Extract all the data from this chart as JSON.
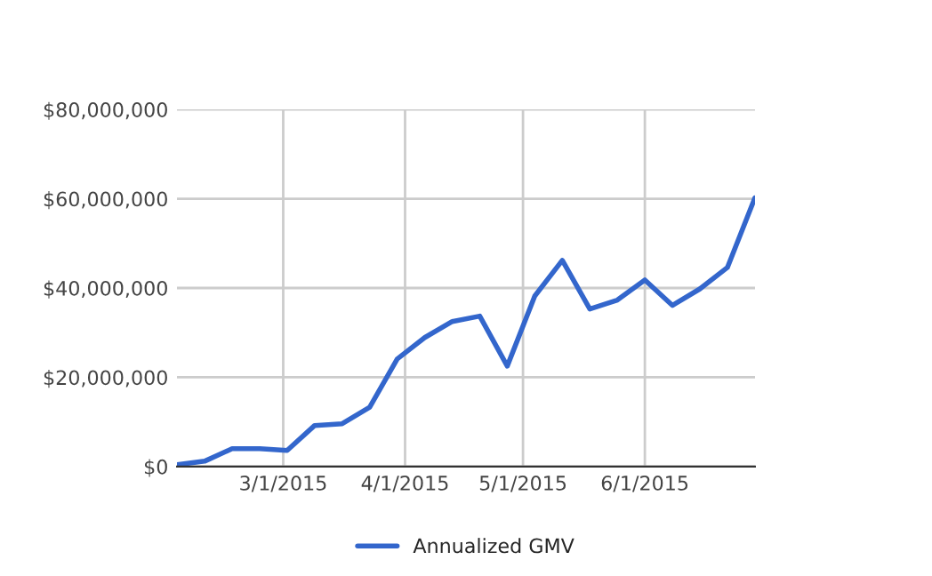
{
  "chart_data": {
    "type": "line",
    "x": [
      "2015-02-02",
      "2015-02-09",
      "2015-02-16",
      "2015-02-23",
      "2015-03-02",
      "2015-03-09",
      "2015-03-16",
      "2015-03-23",
      "2015-03-30",
      "2015-04-06",
      "2015-04-13",
      "2015-04-20",
      "2015-04-27",
      "2015-05-04",
      "2015-05-11",
      "2015-05-18",
      "2015-05-25",
      "2015-06-01",
      "2015-06-08",
      "2015-06-15",
      "2015-06-22",
      "2015-06-29"
    ],
    "series": [
      {
        "name": "Annualized GMV",
        "color": "#3366cc",
        "values": [
          400000,
          1200000,
          4000000,
          4000000,
          3600000,
          9200000,
          9600000,
          13300000,
          24100000,
          28900000,
          32500000,
          33700000,
          22500000,
          38200000,
          46200000,
          35300000,
          37300000,
          41800000,
          36100000,
          39800000,
          44600000,
          60200000
        ]
      }
    ],
    "xlim": [
      "2015-02-02",
      "2015-06-29"
    ],
    "xticks": [
      {
        "value": "2015-03-01",
        "label": "3/1/2015"
      },
      {
        "value": "2015-04-01",
        "label": "4/1/2015"
      },
      {
        "value": "2015-05-01",
        "label": "5/1/2015"
      },
      {
        "value": "2015-06-01",
        "label": "6/1/2015"
      }
    ],
    "ylim": [
      0,
      80000000
    ],
    "yticks": [
      {
        "value": 0,
        "label": "$0"
      },
      {
        "value": 20000000,
        "label": "$20,000,000"
      },
      {
        "value": 40000000,
        "label": "$40,000,000"
      },
      {
        "value": 60000000,
        "label": "$60,000,000"
      },
      {
        "value": 80000000,
        "label": "$80,000,000"
      }
    ],
    "grid": true,
    "legend": "bottom",
    "marker": "none",
    "line_style": "solid"
  }
}
